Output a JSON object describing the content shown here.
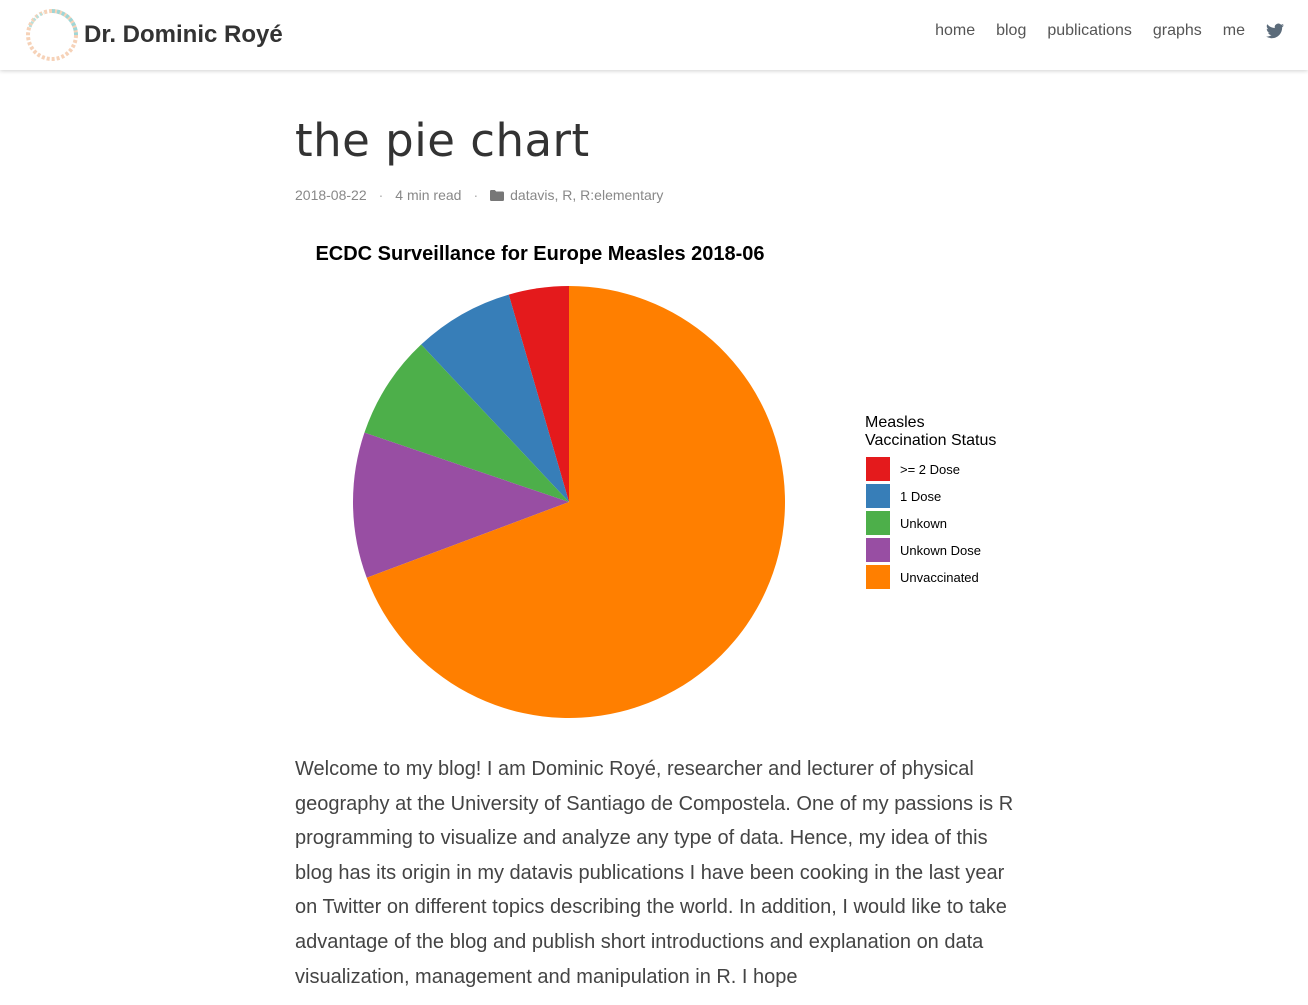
{
  "header": {
    "brand": "Dr. Dominic Royé",
    "nav": [
      "home",
      "blog",
      "publications",
      "graphs",
      "me"
    ]
  },
  "post": {
    "title": "the pie chart",
    "date": "2018-08-22",
    "read_time": "4 min read",
    "categories": [
      "datavis",
      "R",
      "R:elementary"
    ],
    "body": "Welcome to my blog! I am Dominic Royé, researcher and lecturer of physical geography at the University of Santiago de Compostela. One of my passions is R programming to visualize and analyze any type of data. Hence, my idea of this blog has its origin in my datavis publications I have been cooking in the last year on Twitter on different topics describing the world. In addition, I would like to take advantage of the blog and publish short introductions and explanation on data visualization, management and manipulation in R. I hope"
  },
  "chart_data": {
    "type": "pie",
    "title": "ECDC Surveillance for Europe Measles 2018-06",
    "legend_title": "Measles\nVaccination Status",
    "legend_position": "right",
    "categories": [
      ">= 2 Dose",
      "1 Dose",
      "Unkown",
      "Unkown Dose",
      "Unvaccinated"
    ],
    "values": [
      4.5,
      7.5,
      7.8,
      10.9,
      69.3
    ],
    "colors": [
      "#e41a1c",
      "#377eb8",
      "#4daf4a",
      "#984ea3",
      "#ff7f00"
    ]
  }
}
